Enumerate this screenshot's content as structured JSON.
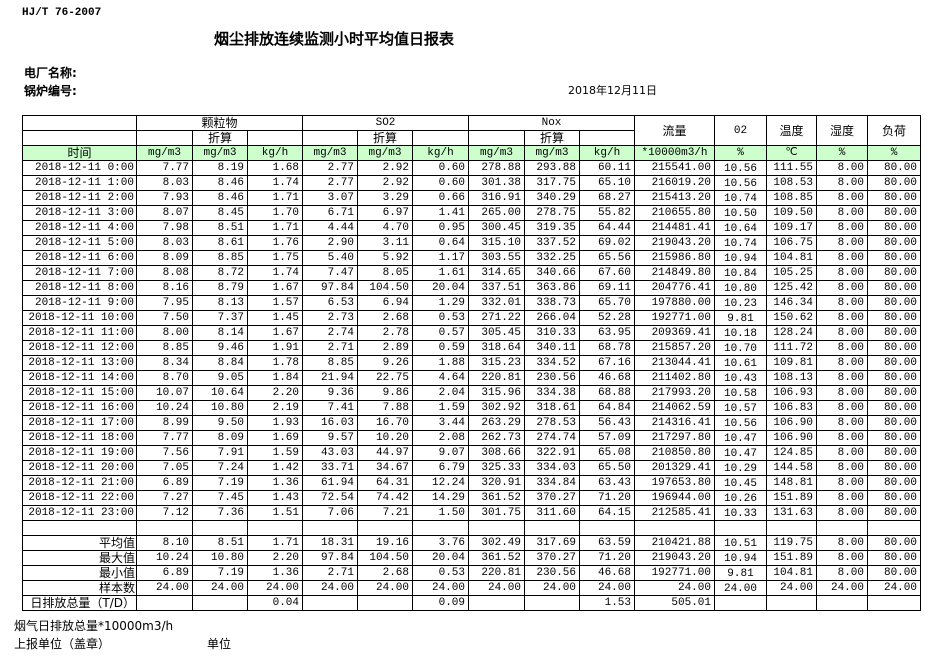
{
  "standard": "HJ/T  76-2007",
  "title": "烟尘排放连续监测小时平均值日报表",
  "plant_label": "电厂名称:",
  "boiler_label": "锅炉编号:",
  "date": "2018年12月11日",
  "header": {
    "particulate": "颗粒物",
    "so2": "SO2",
    "nox": "Nox",
    "converted": "折算",
    "flow": "流量",
    "o2": "02",
    "temp": "温度",
    "humidity": "湿度",
    "load": "负荷",
    "time": "时间",
    "units": [
      "mg/m3",
      "mg/m3",
      "kg/h",
      "mg/m3",
      "mg/m3",
      "kg/h",
      "mg/m3",
      "mg/m3",
      "kg/h",
      "*10000m3/h",
      "%",
      "℃",
      "%",
      "%"
    ]
  },
  "rows": [
    [
      "2018-12-11 0:00",
      "7.77",
      "8.19",
      "1.68",
      "2.77",
      "2.92",
      "0.60",
      "278.88",
      "293.88",
      "60.11",
      "215541.00",
      "10.56",
      "111.55",
      "8.00",
      "80.00"
    ],
    [
      "2018-12-11 1:00",
      "8.03",
      "8.46",
      "1.74",
      "2.77",
      "2.92",
      "0.60",
      "301.38",
      "317.75",
      "65.10",
      "216019.20",
      "10.56",
      "108.53",
      "8.00",
      "80.00"
    ],
    [
      "2018-12-11 2:00",
      "7.93",
      "8.46",
      "1.71",
      "3.07",
      "3.29",
      "0.66",
      "316.91",
      "340.29",
      "68.27",
      "215413.20",
      "10.74",
      "108.85",
      "8.00",
      "80.00"
    ],
    [
      "2018-12-11 3:00",
      "8.07",
      "8.45",
      "1.70",
      "6.71",
      "6.97",
      "1.41",
      "265.00",
      "278.75",
      "55.82",
      "210655.80",
      "10.50",
      "109.50",
      "8.00",
      "80.00"
    ],
    [
      "2018-12-11 4:00",
      "7.98",
      "8.51",
      "1.71",
      "4.44",
      "4.70",
      "0.95",
      "300.45",
      "319.35",
      "64.44",
      "214481.41",
      "10.64",
      "109.17",
      "8.00",
      "80.00"
    ],
    [
      "2018-12-11 5:00",
      "8.03",
      "8.61",
      "1.76",
      "2.90",
      "3.11",
      "0.64",
      "315.10",
      "337.52",
      "69.02",
      "219043.20",
      "10.74",
      "106.75",
      "8.00",
      "80.00"
    ],
    [
      "2018-12-11 6:00",
      "8.09",
      "8.85",
      "1.75",
      "5.40",
      "5.92",
      "1.17",
      "303.55",
      "332.25",
      "65.56",
      "215986.80",
      "10.94",
      "104.81",
      "8.00",
      "80.00"
    ],
    [
      "2018-12-11 7:00",
      "8.08",
      "8.72",
      "1.74",
      "7.47",
      "8.05",
      "1.61",
      "314.65",
      "340.66",
      "67.60",
      "214849.80",
      "10.84",
      "105.25",
      "8.00",
      "80.00"
    ],
    [
      "2018-12-11 8:00",
      "8.16",
      "8.79",
      "1.67",
      "97.84",
      "104.50",
      "20.04",
      "337.51",
      "363.86",
      "69.11",
      "204776.41",
      "10.80",
      "125.42",
      "8.00",
      "80.00"
    ],
    [
      "2018-12-11 9:00",
      "7.95",
      "8.13",
      "1.57",
      "6.53",
      "6.94",
      "1.29",
      "332.01",
      "338.73",
      "65.70",
      "197880.00",
      "10.23",
      "146.34",
      "8.00",
      "80.00"
    ],
    [
      "2018-12-11 10:00",
      "7.50",
      "7.37",
      "1.45",
      "2.73",
      "2.68",
      "0.53",
      "271.22",
      "266.04",
      "52.28",
      "192771.00",
      "9.81",
      "150.62",
      "8.00",
      "80.00"
    ],
    [
      "2018-12-11 11:00",
      "8.00",
      "8.14",
      "1.67",
      "2.74",
      "2.78",
      "0.57",
      "305.45",
      "310.33",
      "63.95",
      "209369.41",
      "10.18",
      "128.24",
      "8.00",
      "80.00"
    ],
    [
      "2018-12-11 12:00",
      "8.85",
      "9.46",
      "1.91",
      "2.71",
      "2.89",
      "0.59",
      "318.64",
      "340.11",
      "68.78",
      "215857.20",
      "10.70",
      "111.72",
      "8.00",
      "80.00"
    ],
    [
      "2018-12-11 13:00",
      "8.34",
      "8.84",
      "1.78",
      "8.85",
      "9.26",
      "1.88",
      "315.23",
      "334.52",
      "67.16",
      "213044.41",
      "10.61",
      "109.81",
      "8.00",
      "80.00"
    ],
    [
      "2018-12-11 14:00",
      "8.70",
      "9.05",
      "1.84",
      "21.94",
      "22.75",
      "4.64",
      "220.81",
      "230.56",
      "46.68",
      "211402.80",
      "10.43",
      "108.13",
      "8.00",
      "80.00"
    ],
    [
      "2018-12-11 15:00",
      "10.07",
      "10.64",
      "2.20",
      "9.36",
      "9.86",
      "2.04",
      "315.96",
      "334.38",
      "68.88",
      "217993.20",
      "10.58",
      "106.93",
      "8.00",
      "80.00"
    ],
    [
      "2018-12-11 16:00",
      "10.24",
      "10.80",
      "2.19",
      "7.41",
      "7.88",
      "1.59",
      "302.92",
      "318.61",
      "64.84",
      "214062.59",
      "10.57",
      "106.83",
      "8.00",
      "80.00"
    ],
    [
      "2018-12-11 17:00",
      "8.99",
      "9.50",
      "1.93",
      "16.03",
      "16.70",
      "3.44",
      "263.29",
      "278.53",
      "56.43",
      "214316.41",
      "10.56",
      "106.90",
      "8.00",
      "80.00"
    ],
    [
      "2018-12-11 18:00",
      "7.77",
      "8.09",
      "1.69",
      "9.57",
      "10.20",
      "2.08",
      "262.73",
      "274.74",
      "57.09",
      "217297.80",
      "10.47",
      "106.90",
      "8.00",
      "80.00"
    ],
    [
      "2018-12-11 19:00",
      "7.56",
      "7.91",
      "1.59",
      "43.03",
      "44.97",
      "9.07",
      "308.66",
      "322.91",
      "65.08",
      "210850.80",
      "10.47",
      "124.85",
      "8.00",
      "80.00"
    ],
    [
      "2018-12-11 20:00",
      "7.05",
      "7.24",
      "1.42",
      "33.71",
      "34.67",
      "6.79",
      "325.33",
      "334.03",
      "65.50",
      "201329.41",
      "10.29",
      "144.58",
      "8.00",
      "80.00"
    ],
    [
      "2018-12-11 21:00",
      "6.89",
      "7.19",
      "1.36",
      "61.94",
      "64.31",
      "12.24",
      "320.91",
      "334.84",
      "63.43",
      "197653.80",
      "10.45",
      "148.81",
      "8.00",
      "80.00"
    ],
    [
      "2018-12-11 22:00",
      "7.27",
      "7.45",
      "1.43",
      "72.54",
      "74.42",
      "14.29",
      "361.52",
      "370.27",
      "71.20",
      "196944.00",
      "10.26",
      "151.89",
      "8.00",
      "80.00"
    ],
    [
      "2018-12-11 23:00",
      "7.12",
      "7.36",
      "1.51",
      "7.06",
      "7.21",
      "1.50",
      "301.75",
      "311.60",
      "64.15",
      "212585.41",
      "10.33",
      "131.63",
      "8.00",
      "80.00"
    ]
  ],
  "summary": [
    [
      "平均值",
      "8.10",
      "8.51",
      "1.71",
      "18.31",
      "19.16",
      "3.76",
      "302.49",
      "317.69",
      "63.59",
      "210421.88",
      "10.51",
      "119.75",
      "8.00",
      "80.00"
    ],
    [
      "最大值",
      "10.24",
      "10.80",
      "2.20",
      "97.84",
      "104.50",
      "20.04",
      "361.52",
      "370.27",
      "71.20",
      "219043.20",
      "10.94",
      "151.89",
      "8.00",
      "80.00"
    ],
    [
      "最小值",
      "6.89",
      "7.19",
      "1.36",
      "2.71",
      "2.68",
      "0.53",
      "220.81",
      "230.56",
      "46.68",
      "192771.00",
      "9.81",
      "104.81",
      "8.00",
      "80.00"
    ],
    [
      "样本数",
      "24.00",
      "24.00",
      "24.00",
      "24.00",
      "24.00",
      "24.00",
      "24.00",
      "24.00",
      "24.00",
      "24.00",
      "24.00",
      "24.00",
      "24.00",
      "24.00"
    ],
    [
      "日排放总量（T/D）",
      "",
      "",
      "0.04",
      "",
      "",
      "0.09",
      "",
      "",
      "1.53",
      "505.01",
      "",
      "",
      "",
      ""
    ]
  ],
  "footer": {
    "flue_gas_total": "烟气日排放总量*10000m3/h",
    "reporting_unit": "上报单位（盖章）",
    "unit": "单位"
  }
}
